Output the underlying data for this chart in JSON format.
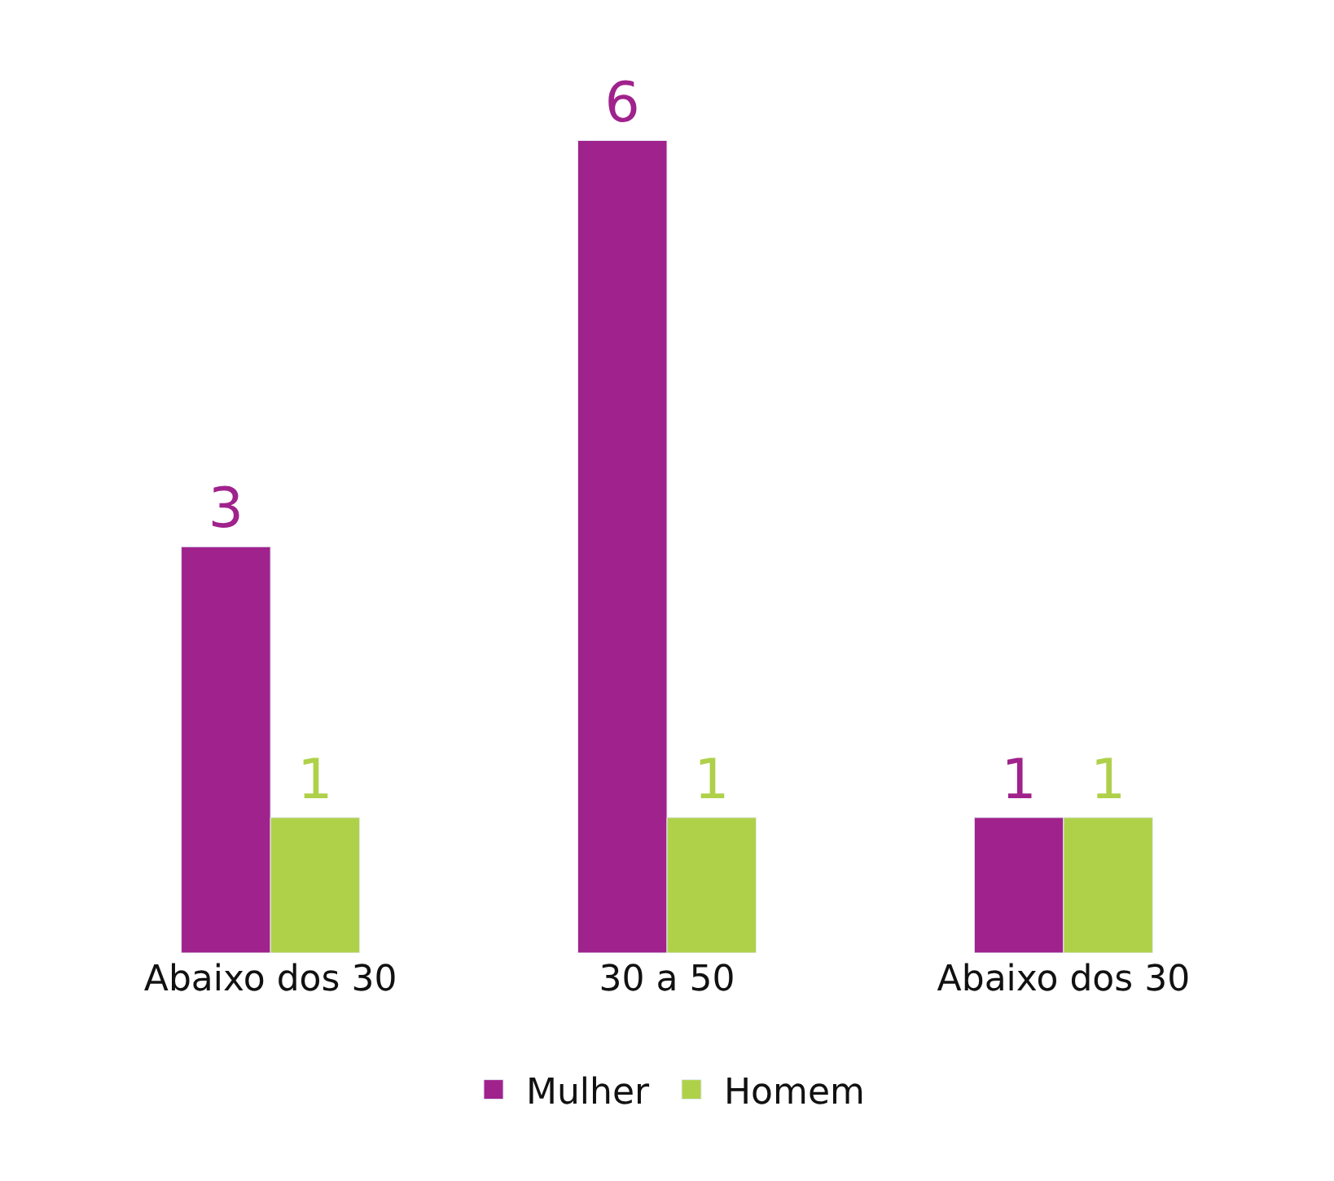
{
  "chart_data": {
    "type": "bar",
    "categories": [
      "Abaixo dos 30",
      "30 a 50",
      "Abaixo dos 30"
    ],
    "series": [
      {
        "name": "Mulher",
        "color": "#a0228c",
        "values": [
          3,
          6,
          1
        ]
      },
      {
        "name": "Homem",
        "color": "#afd14a",
        "values": [
          1,
          1,
          1
        ]
      }
    ],
    "data_labels": true,
    "legend": "bottom"
  }
}
